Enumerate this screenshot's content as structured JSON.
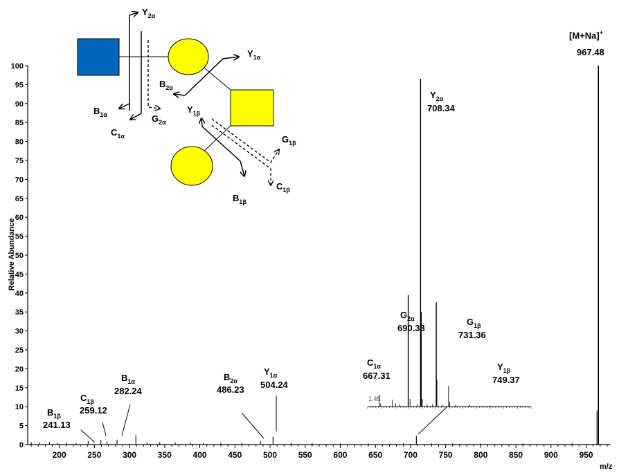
{
  "chart_data": {
    "type": "bar",
    "xlabel": "m/z",
    "ylabel": "Relative Abundance",
    "xlim": [
      155,
      985
    ],
    "ylim": [
      0,
      100
    ],
    "x_ticks": [
      200,
      250,
      300,
      350,
      400,
      450,
      500,
      550,
      600,
      650,
      700,
      750,
      800,
      850,
      900,
      950
    ],
    "y_ticks": [
      0,
      5,
      10,
      15,
      20,
      25,
      30,
      35,
      40,
      45,
      50,
      55,
      60,
      65,
      70,
      75,
      80,
      85,
      90,
      95,
      100
    ],
    "peaks": [
      {
        "mz": 160,
        "y": 0.6
      },
      {
        "mz": 172,
        "y": 0.5
      },
      {
        "mz": 186,
        "y": 0.7
      },
      {
        "mz": 198,
        "y": 0.5
      },
      {
        "mz": 210,
        "y": 0.6
      },
      {
        "mz": 224,
        "y": 0.4
      },
      {
        "mz": 241.13,
        "y": 0.9
      },
      {
        "mz": 259.12,
        "y": 1.2
      },
      {
        "mz": 268,
        "y": 0.8
      },
      {
        "mz": 282.24,
        "y": 1.3
      },
      {
        "mz": 309,
        "y": 2.5
      },
      {
        "mz": 325,
        "y": 0.6
      },
      {
        "mz": 343,
        "y": 0.7
      },
      {
        "mz": 365,
        "y": 0.6
      },
      {
        "mz": 387,
        "y": 0.5
      },
      {
        "mz": 405,
        "y": 0.4
      },
      {
        "mz": 430,
        "y": 0.4
      },
      {
        "mz": 460,
        "y": 0.5
      },
      {
        "mz": 486.23,
        "y": 1.0
      },
      {
        "mz": 504.24,
        "y": 2.1
      },
      {
        "mz": 530,
        "y": 0.4
      },
      {
        "mz": 560,
        "y": 0.4
      },
      {
        "mz": 600,
        "y": 0.3
      },
      {
        "mz": 640,
        "y": 0.3
      },
      {
        "mz": 690,
        "y": 0.4
      },
      {
        "mz": 708.34,
        "y": 2.3
      },
      {
        "mz": 730,
        "y": 0.3
      },
      {
        "mz": 760,
        "y": 0.3
      },
      {
        "mz": 800,
        "y": 0.3
      },
      {
        "mz": 860,
        "y": 0.3
      },
      {
        "mz": 930,
        "y": 0.4
      },
      {
        "mz": 965.5,
        "y": 9.0
      },
      {
        "mz": 967.48,
        "y": 100
      }
    ],
    "inset": {
      "label": "1.45",
      "xlim": [
        631,
        870
      ],
      "x_axis_y": 1.45,
      "peaks": [
        {
          "mz": 648,
          "y": 3.2
        },
        {
          "mz": 650,
          "y": 0.8
        },
        {
          "mz": 667.31,
          "y": 1.8
        },
        {
          "mz": 672,
          "y": 0.8
        },
        {
          "mz": 678,
          "y": 0.6
        },
        {
          "mz": 690.33,
          "y": 29.5
        },
        {
          "mz": 693,
          "y": 2.0
        },
        {
          "mz": 704,
          "y": 0.6
        },
        {
          "mz": 708.34,
          "y": 86.5
        },
        {
          "mz": 709.3,
          "y": 25.0
        },
        {
          "mz": 711,
          "y": 2.0
        },
        {
          "mz": 718,
          "y": 0.6
        },
        {
          "mz": 726,
          "y": 0.6
        },
        {
          "mz": 731.36,
          "y": 27.5
        },
        {
          "mz": 732.3,
          "y": 7.0
        },
        {
          "mz": 740,
          "y": 0.5
        },
        {
          "mz": 749.37,
          "y": 5.5
        },
        {
          "mz": 751,
          "y": 1.2
        },
        {
          "mz": 760,
          "y": 0.5
        },
        {
          "mz": 780,
          "y": 0.4
        },
        {
          "mz": 810,
          "y": 0.3
        }
      ]
    },
    "annotations": [
      {
        "id": "b1b",
        "ion": "B",
        "sub": "1β",
        "mz_text": "241.13"
      },
      {
        "id": "c1b",
        "ion": "C",
        "sub": "1β",
        "mz_text": "259.12"
      },
      {
        "id": "b1a",
        "ion": "B",
        "sub": "1α",
        "mz_text": "282.24"
      },
      {
        "id": "b2a",
        "ion": "B",
        "sub": "2α",
        "mz_text": "486.23"
      },
      {
        "id": "y1a",
        "ion": "Y",
        "sub": "1α",
        "mz_text": "504.24"
      },
      {
        "id": "c1a",
        "ion": "C",
        "sub": "1α",
        "mz_text": "667.31"
      },
      {
        "id": "g2a",
        "ion": "G",
        "sub": "2α",
        "mz_text": "690.33"
      },
      {
        "id": "y2a",
        "ion": "Y",
        "sub": "2α",
        "mz_text": "708.34"
      },
      {
        "id": "g1b",
        "ion": "G",
        "sub": "1β",
        "mz_text": "731.36"
      },
      {
        "id": "y1b",
        "ion": "Y",
        "sub": "1β",
        "mz_text": "749.37"
      },
      {
        "id": "mna",
        "ion": "[M+Na]",
        "sup": "+",
        "mz_text": "967.48"
      }
    ]
  },
  "diagram": {
    "colors": {
      "hexnac": "#0066bb",
      "hexose": "#ffff00",
      "square": "#ffff00",
      "outline": "#000000"
    },
    "labels": [
      {
        "id": "d-y2a",
        "ion": "Y",
        "sub": "2α"
      },
      {
        "id": "d-y1a",
        "ion": "Y",
        "sub": "1α"
      },
      {
        "id": "d-b2a",
        "ion": "B",
        "sub": "2α"
      },
      {
        "id": "d-b1a",
        "ion": "B",
        "sub": "1α"
      },
      {
        "id": "d-c1a",
        "ion": "C",
        "sub": "1α"
      },
      {
        "id": "d-g2a",
        "ion": "G",
        "sub": "2α"
      },
      {
        "id": "d-y1b",
        "ion": "Y",
        "sub": "1β"
      },
      {
        "id": "d-g1b",
        "ion": "G",
        "sub": "1β"
      },
      {
        "id": "d-c1b",
        "ion": "C",
        "sub": "1β"
      },
      {
        "id": "d-b1b",
        "ion": "B",
        "sub": "1β"
      }
    ]
  }
}
